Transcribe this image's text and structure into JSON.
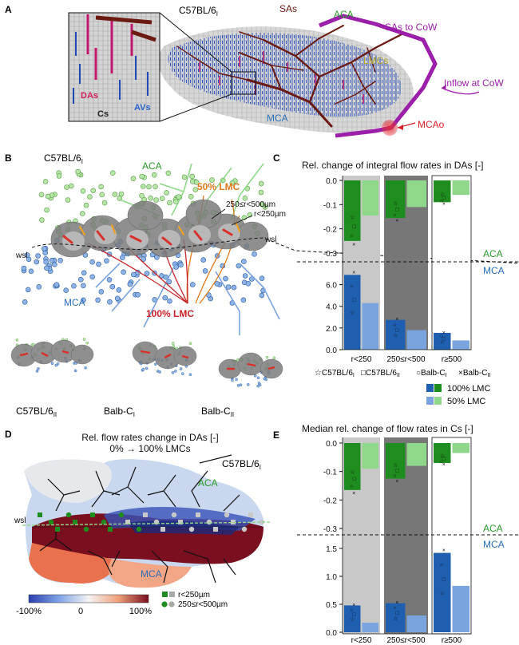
{
  "panels": {
    "A": {
      "letter": "A",
      "strain": "C57BL/6",
      "strain_sub": "I",
      "labels": {
        "sas": "SAs",
        "aca": "ACA",
        "sas_to_cow": "SAs to CoW",
        "lmcs": "LMCs",
        "inflow": "Inflow at CoW",
        "mca": "MCA",
        "mcao": "MCAo",
        "das": "DAs",
        "avs": "AVs",
        "cs": "Cs"
      }
    },
    "B": {
      "letter": "B",
      "strain": "C57BL/6",
      "strain_sub": "I",
      "labels": {
        "aca": "ACA",
        "lmc50": "50% LMC",
        "r_large": "250≤r<500µm",
        "r_small": "r<250µm",
        "wsl_left": "wsl",
        "wsl_right": "wsl",
        "mca": "MCA",
        "lmc100": "100% LMC"
      },
      "sub_networks": [
        {
          "name": "C57BL/6",
          "sub": "II"
        },
        {
          "name": "Balb-C",
          "sub": "I"
        },
        {
          "name": "Balb-C",
          "sub": "II"
        }
      ]
    },
    "C": {
      "letter": "C",
      "title": "Rel. change of integral flow rates in DAs [-]"
    },
    "D": {
      "letter": "D",
      "title": "Rel. flow rates change in DAs [-]",
      "subtitle": "0% → 100% LMCs",
      "strain": "C57BL/6",
      "strain_sub": "I",
      "labels": {
        "aca": "ACA",
        "wsl": "wsl",
        "mca": "MCA"
      },
      "colorbar": {
        "min": "-100%",
        "mid": "0",
        "max": "100%"
      },
      "legend": {
        "small": "r<250µm",
        "large": "250≤r<500µm"
      }
    },
    "E": {
      "letter": "E",
      "title": "Median rel. change of flow rates in Cs [-]"
    }
  },
  "region_labels": {
    "aca": "ACA",
    "mca": "MCA"
  },
  "legend_markers": [
    {
      "symbol": "☆",
      "name": "C57BL/6",
      "sub": "I"
    },
    {
      "symbol": "□",
      "name": "C57BL/6",
      "sub": "II"
    },
    {
      "symbol": "○",
      "name": "Balb-C",
      "sub": "I"
    },
    {
      "symbol": "×",
      "name": "Balb-C",
      "sub": "II"
    }
  ],
  "legend_bars": [
    {
      "label": "100% LMC",
      "colors": [
        "#1f5fb0",
        "#1e8c1e"
      ]
    },
    {
      "label": "50% LMC",
      "colors": [
        "#7aa4dd",
        "#8fd88a"
      ]
    }
  ],
  "colors": {
    "aca_dark": "#1e8c1e",
    "aca_light": "#8fd88a",
    "mca_dark": "#1f5fb0",
    "mca_light": "#7aa4dd",
    "aca_text": "#2a9a2a",
    "mca_text": "#2a6fb8",
    "sas": "#6b1a12",
    "purple": "#9b1fa8",
    "lmc_orange": "#e07a1f",
    "mcao_red": "#d8202a"
  },
  "chart_data": [
    {
      "type": "bar",
      "panel": "C",
      "region": "ACA",
      "categories": [
        "r<250",
        "250≤r<500",
        "r≥500"
      ],
      "ylim": [
        -0.3,
        0
      ],
      "yticks": [
        "0.0",
        "-0.1",
        "-0.2",
        "-0.3"
      ],
      "series": [
        {
          "name": "100% LMC",
          "values": [
            -0.25,
            -0.155,
            -0.09
          ]
        },
        {
          "name": "50% LMC",
          "values": [
            -0.145,
            -0.11,
            -0.06
          ]
        }
      ]
    },
    {
      "type": "bar",
      "panel": "C",
      "region": "MCA",
      "categories": [
        "r<250",
        "250≤r<500",
        "r≥500"
      ],
      "ylim": [
        0,
        7
      ],
      "yticks": [
        "6.0",
        "4.0",
        "2.0",
        "0.0"
      ],
      "series": [
        {
          "name": "100% LMC",
          "values": [
            6.9,
            2.75,
            1.55
          ]
        },
        {
          "name": "50% LMC",
          "values": [
            4.3,
            1.8,
            0.85
          ]
        }
      ]
    },
    {
      "type": "bar",
      "panel": "E",
      "region": "ACA",
      "categories": [
        "r<250",
        "250≤r<500",
        "r≥500"
      ],
      "ylim": [
        -0.3,
        0
      ],
      "yticks": [
        "0.0",
        "-0.1",
        "-0.2",
        "-0.3"
      ],
      "series": [
        {
          "name": "100% LMC",
          "values": [
            -0.165,
            -0.125,
            -0.07
          ]
        },
        {
          "name": "50% LMC",
          "values": [
            -0.09,
            -0.08,
            -0.035
          ]
        }
      ]
    },
    {
      "type": "bar",
      "panel": "E",
      "region": "MCA",
      "categories": [
        "r<250",
        "250≤r<500",
        "r≥500"
      ],
      "ylim": [
        0,
        1.6
      ],
      "yticks": [
        "1.5",
        "1.0",
        "0.5",
        "0.0"
      ],
      "series": [
        {
          "name": "100% LMC",
          "values": [
            0.48,
            0.52,
            1.42
          ]
        },
        {
          "name": "50% LMC",
          "values": [
            0.17,
            0.3,
            0.83
          ]
        }
      ]
    }
  ]
}
